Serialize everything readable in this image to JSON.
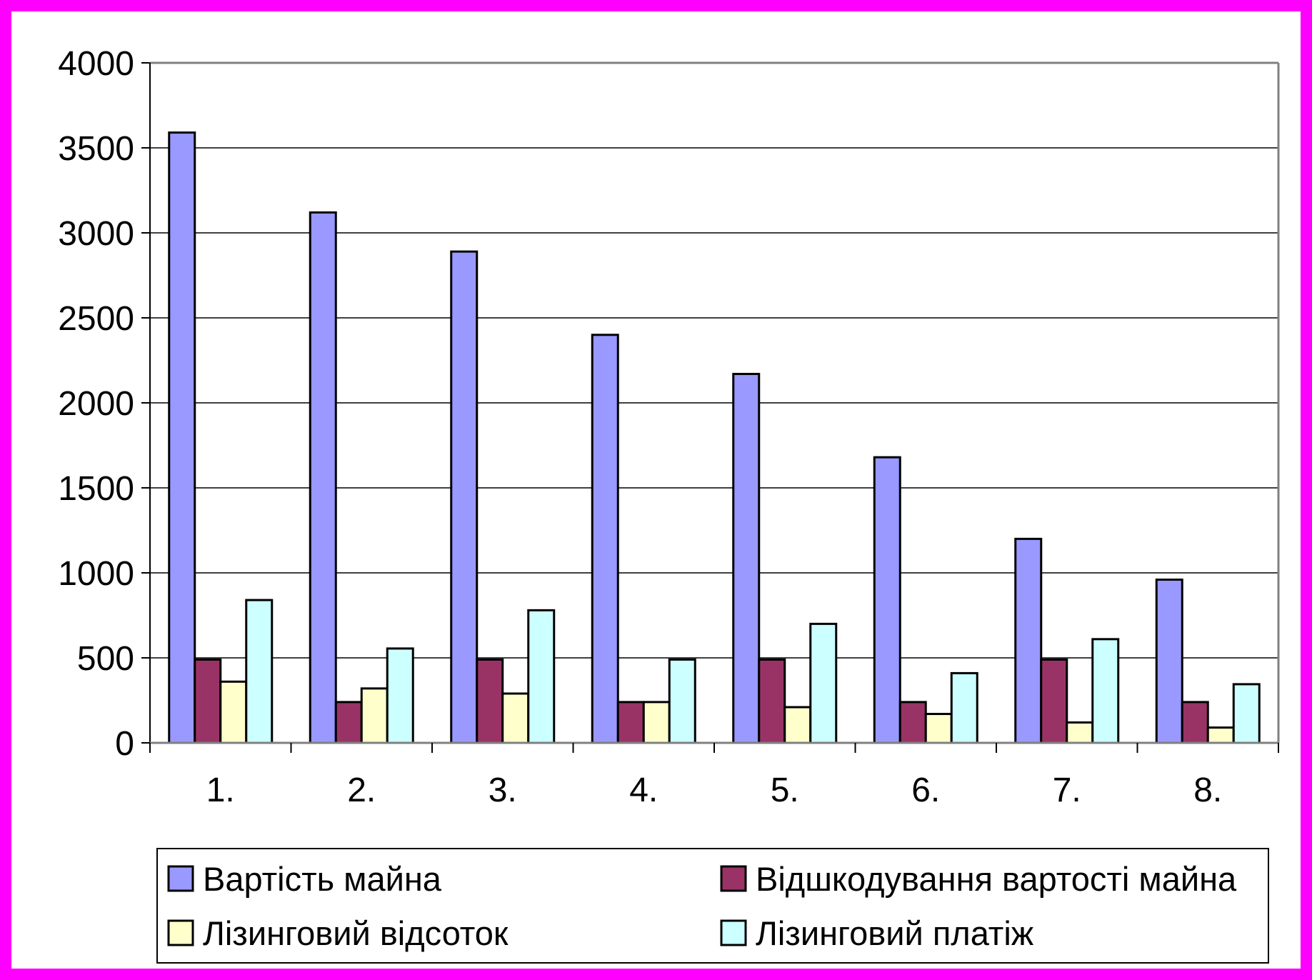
{
  "chart_data": {
    "type": "bar",
    "title": "",
    "xlabel": "",
    "ylabel": "",
    "ylim": [
      0,
      4000
    ],
    "yticks": [
      0,
      500,
      1000,
      1500,
      2000,
      2500,
      3000,
      3500,
      4000
    ],
    "grid": true,
    "legend_position": "bottom",
    "categories": [
      "1.",
      "2.",
      "3.",
      "4.",
      "5.",
      "6.",
      "7.",
      "8."
    ],
    "series": [
      {
        "name": "Вартість майна",
        "color": "#9999ff",
        "values": [
          3590,
          3120,
          2890,
          2400,
          2170,
          1680,
          1200,
          960
        ]
      },
      {
        "name": "Відшкодування вартості майна",
        "color": "#993366",
        "values": [
          490,
          240,
          490,
          240,
          490,
          240,
          490,
          240
        ]
      },
      {
        "name": "Лізинговий відсоток",
        "color": "#ffffcc",
        "values": [
          360,
          320,
          290,
          240,
          210,
          170,
          120,
          90
        ]
      },
      {
        "name": "Лізинговий платіж",
        "color": "#ccffff",
        "values": [
          840,
          555,
          780,
          490,
          700,
          410,
          610,
          345
        ]
      }
    ]
  }
}
